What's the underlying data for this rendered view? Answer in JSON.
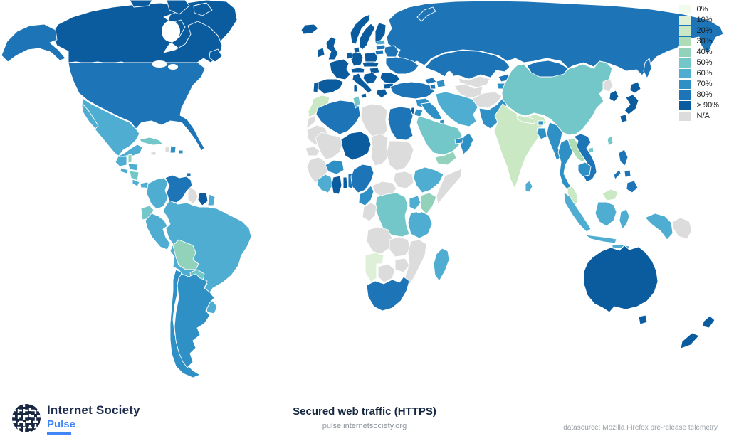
{
  "map": {
    "palette": {
      "0%": "#f3faee",
      "10%": "#def1d8",
      "20%": "#c9e8c3",
      "30%": "#aedcb6",
      "40%": "#92d2bb",
      "50%": "#74c7c8",
      "60%": "#4fadd1",
      "70%": "#2f90c5",
      "80%": "#1d74b6",
      "> 90%": "#0b5c9f",
      "N/A": "#dcdcdc"
    },
    "regions": {
      "canada": {
        "label": "Canada",
        "value": "> 90%"
      },
      "greenland": {
        "label": "Greenland",
        "value": "> 90%"
      },
      "united-states": {
        "label": "United States",
        "value": "80%"
      },
      "mexico": {
        "label": "Mexico",
        "value": "60%"
      },
      "guatemala": {
        "label": "Guatemala",
        "value": "60%"
      },
      "belize": {
        "label": "Belize",
        "value": "40%"
      },
      "honduras": {
        "label": "Honduras",
        "value": "60%"
      },
      "el-salvador": {
        "label": "El Salvador",
        "value": "60%"
      },
      "nicaragua": {
        "label": "Nicaragua",
        "value": "50%"
      },
      "costa-rica": {
        "label": "Costa Rica",
        "value": "60%"
      },
      "panama": {
        "label": "Panama",
        "value": "60%"
      },
      "cuba": {
        "label": "Cuba",
        "value": "50%"
      },
      "jamaica": {
        "label": "Jamaica",
        "value": "N/A"
      },
      "haiti": {
        "label": "Haiti",
        "value": "N/A"
      },
      "dominican-republic": {
        "label": "Dominican Republic",
        "value": "70%"
      },
      "puerto-rico": {
        "label": "Puerto Rico",
        "value": "70%"
      },
      "trinidad-tobago": {
        "label": "Trinidad and Tobago",
        "value": "80%"
      },
      "colombia": {
        "label": "Colombia",
        "value": "60%"
      },
      "venezuela": {
        "label": "Venezuela",
        "value": "80%"
      },
      "guyana": {
        "label": "Guyana",
        "value": "N/A"
      },
      "suriname": {
        "label": "Suriname",
        "value": "> 90%"
      },
      "french-guiana": {
        "label": "French Guiana",
        "value": "60%"
      },
      "ecuador": {
        "label": "Ecuador",
        "value": "50%"
      },
      "peru": {
        "label": "Peru",
        "value": "60%"
      },
      "brazil": {
        "label": "Brazil",
        "value": "60%"
      },
      "bolivia": {
        "label": "Bolivia",
        "value": "40%"
      },
      "paraguay": {
        "label": "Paraguay",
        "value": "50%"
      },
      "uruguay": {
        "label": "Uruguay",
        "value": "60%"
      },
      "chile": {
        "label": "Chile",
        "value": "70%"
      },
      "argentina": {
        "label": "Argentina",
        "value": "70%"
      },
      "iceland": {
        "label": "Iceland",
        "value": "> 90%"
      },
      "united-kingdom": {
        "label": "United Kingdom",
        "value": "> 90%"
      },
      "ireland": {
        "label": "Ireland",
        "value": "> 90%"
      },
      "norway": {
        "label": "Norway",
        "value": "> 90%"
      },
      "sweden": {
        "label": "Sweden",
        "value": "> 90%"
      },
      "finland": {
        "label": "Finland",
        "value": "> 90%"
      },
      "denmark": {
        "label": "Denmark",
        "value": "> 90%"
      },
      "estonia": {
        "label": "Estonia",
        "value": "60%"
      },
      "latvia": {
        "label": "Latvia",
        "value": "80%"
      },
      "lithuania": {
        "label": "Lithuania",
        "value": "80%"
      },
      "germany": {
        "label": "Germany",
        "value": "> 90%"
      },
      "benelux": {
        "label": "Netherlands / Belgium",
        "value": "> 90%"
      },
      "france": {
        "label": "France",
        "value": "> 90%"
      },
      "spain": {
        "label": "Spain",
        "value": "> 90%"
      },
      "portugal": {
        "label": "Portugal",
        "value": "> 90%"
      },
      "italy": {
        "label": "Italy",
        "value": "> 90%"
      },
      "switzerland-austria": {
        "label": "Switzerland / Austria",
        "value": "> 90%"
      },
      "czechia-slovakia": {
        "label": "Czechia / Slovakia",
        "value": "> 90%"
      },
      "poland": {
        "label": "Poland",
        "value": "> 90%"
      },
      "hungary": {
        "label": "Hungary",
        "value": "> 90%"
      },
      "balkans": {
        "label": "Western Balkans",
        "value": "> 90%"
      },
      "romania": {
        "label": "Romania",
        "value": "> 90%"
      },
      "bulgaria": {
        "label": "Bulgaria",
        "value": "> 90%"
      },
      "greece": {
        "label": "Greece",
        "value": "> 90%"
      },
      "belarus": {
        "label": "Belarus",
        "value": "80%"
      },
      "ukraine": {
        "label": "Ukraine",
        "value": "80%"
      },
      "russia": {
        "label": "Russia",
        "value": "80%"
      },
      "kazakhstan": {
        "label": "Kazakhstan",
        "value": "80%"
      },
      "kyrgyzstan": {
        "label": "Kyrgyzstan",
        "value": "80%"
      },
      "tajikistan": {
        "label": "Tajikistan",
        "value": "70%"
      },
      "uzbekistan": {
        "label": "Uzbekistan",
        "value": "N/A"
      },
      "turkmenistan": {
        "label": "Turkmenistan",
        "value": "N/A"
      },
      "afghanistan": {
        "label": "Afghanistan",
        "value": "N/A"
      },
      "pakistan": {
        "label": "Pakistan",
        "value": "70%"
      },
      "india": {
        "label": "India",
        "value": "20%"
      },
      "nepal": {
        "label": "Nepal",
        "value": "20%"
      },
      "bhutan": {
        "label": "Bhutan",
        "value": "70%"
      },
      "bangladesh": {
        "label": "Bangladesh",
        "value": "70%"
      },
      "sri-lanka": {
        "label": "Sri Lanka",
        "value": "60%"
      },
      "myanmar": {
        "label": "Myanmar",
        "value": "70%"
      },
      "thailand": {
        "label": "Thailand",
        "value": "70%"
      },
      "laos": {
        "label": "Laos",
        "value": "30%"
      },
      "vietnam": {
        "label": "Vietnam",
        "value": "80%"
      },
      "cambodia": {
        "label": "Cambodia",
        "value": "70%"
      },
      "malaysia": {
        "label": "Malaysia",
        "value": "20%"
      },
      "indonesia": {
        "label": "Indonesia",
        "value": "60%"
      },
      "philippines": {
        "label": "Philippines",
        "value": "80%"
      },
      "papua-new-guinea": {
        "label": "Papua New Guinea",
        "value": "N/A"
      },
      "china": {
        "label": "China",
        "value": "50%"
      },
      "mongolia": {
        "label": "Mongolia",
        "value": "80%"
      },
      "taiwan": {
        "label": "Taiwan",
        "value": "50%"
      },
      "north-korea": {
        "label": "North Korea",
        "value": "N/A"
      },
      "south-korea": {
        "label": "South Korea",
        "value": "> 90%"
      },
      "japan": {
        "label": "Japan",
        "value": "> 90%"
      },
      "turkey": {
        "label": "Turkey",
        "value": "80%"
      },
      "georgia": {
        "label": "Georgia",
        "value": "80%"
      },
      "armenia": {
        "label": "Armenia",
        "value": "80%"
      },
      "azerbaijan": {
        "label": "Azerbaijan",
        "value": "70%"
      },
      "syria": {
        "label": "Syria",
        "value": "70%"
      },
      "iraq": {
        "label": "Iraq",
        "value": "70%"
      },
      "israel": {
        "label": "Israel",
        "value": "> 90%"
      },
      "jordan": {
        "label": "Jordan",
        "value": "70%"
      },
      "kuwait": {
        "label": "Kuwait",
        "value": "70%"
      },
      "saudi-arabia": {
        "label": "Saudi Arabia",
        "value": "50%"
      },
      "yemen": {
        "label": "Yemen",
        "value": "40%"
      },
      "oman": {
        "label": "Oman",
        "value": "70%"
      },
      "uae": {
        "label": "United Arab Emirates",
        "value": "70%"
      },
      "iran": {
        "label": "Iran",
        "value": "60%"
      },
      "morocco": {
        "label": "Morocco",
        "value": "20%"
      },
      "western-sahara": {
        "label": "Western Sahara",
        "value": "N/A"
      },
      "algeria": {
        "label": "Algeria",
        "value": "80%"
      },
      "tunisia": {
        "label": "Tunisia",
        "value": "50%"
      },
      "libya": {
        "label": "Libya",
        "value": "N/A"
      },
      "egypt": {
        "label": "Egypt",
        "value": "80%"
      },
      "mauritania": {
        "label": "Mauritania",
        "value": "N/A"
      },
      "mali": {
        "label": "Mali",
        "value": "N/A"
      },
      "senegal": {
        "label": "Senegal",
        "value": "N/A"
      },
      "guinea-region": {
        "label": "Guinea / Sierra Leone / Liberia",
        "value": "N/A"
      },
      "cote-divoire": {
        "label": "Côte d'Ivoire",
        "value": "60%"
      },
      "ghana": {
        "label": "Ghana",
        "value": "> 90%"
      },
      "togo": {
        "label": "Togo",
        "value": "> 90%"
      },
      "benin": {
        "label": "Benin",
        "value": "80%"
      },
      "burkina-faso": {
        "label": "Burkina Faso",
        "value": "70%"
      },
      "niger": {
        "label": "Niger",
        "value": "> 90%"
      },
      "chad": {
        "label": "Chad",
        "value": "N/A"
      },
      "nigeria": {
        "label": "Nigeria",
        "value": "80%"
      },
      "cameroon": {
        "label": "Cameroon",
        "value": "70%"
      },
      "central-african-republic": {
        "label": "Central African Republic",
        "value": "N/A"
      },
      "sudan": {
        "label": "Sudan",
        "value": "N/A"
      },
      "south-sudan": {
        "label": "South Sudan",
        "value": "N/A"
      },
      "ethiopia": {
        "label": "Ethiopia",
        "value": "60%"
      },
      "somalia": {
        "label": "Somalia",
        "value": "N/A"
      },
      "kenya": {
        "label": "Kenya",
        "value": "40%"
      },
      "uganda": {
        "label": "Uganda",
        "value": "60%"
      },
      "dr-congo": {
        "label": "DR Congo",
        "value": "50%"
      },
      "congo-gabon": {
        "label": "Congo / Gabon",
        "value": "N/A"
      },
      "tanzania": {
        "label": "Tanzania",
        "value": "60%"
      },
      "angola": {
        "label": "Angola",
        "value": "N/A"
      },
      "zambia": {
        "label": "Zambia",
        "value": "N/A"
      },
      "mozambique": {
        "label": "Mozambique / Malawi",
        "value": "N/A"
      },
      "zimbabwe": {
        "label": "Zimbabwe",
        "value": "N/A"
      },
      "namibia": {
        "label": "Namibia",
        "value": "10%"
      },
      "botswana": {
        "label": "Botswana",
        "value": "N/A"
      },
      "south-africa": {
        "label": "South Africa",
        "value": "80%"
      },
      "madagascar": {
        "label": "Madagascar",
        "value": "60%"
      },
      "australia": {
        "label": "Australia",
        "value": "> 90%"
      },
      "new-zealand": {
        "label": "New Zealand",
        "value": "> 90%"
      }
    }
  },
  "legend": {
    "items": [
      {
        "label": "0%",
        "value": "0%"
      },
      {
        "label": "10%",
        "value": "10%"
      },
      {
        "label": "20%",
        "value": "20%"
      },
      {
        "label": "30%",
        "value": "30%"
      },
      {
        "label": "40%",
        "value": "40%"
      },
      {
        "label": "50%",
        "value": "50%"
      },
      {
        "label": "60%",
        "value": "60%"
      },
      {
        "label": "70%",
        "value": "70%"
      },
      {
        "label": "80%",
        "value": "80%"
      },
      {
        "label": "> 90%",
        "value": "> 90%"
      },
      {
        "label": "N/A",
        "value": "N/A"
      }
    ]
  },
  "footer": {
    "brand_line1": "Internet Society",
    "brand_line2": "Pulse",
    "title": "Secured web traffic (HTTPS)",
    "subtitle": "pulse.internetsociety.org",
    "datasource": "datasource: Mozilla Firefox pre-release telemetry"
  }
}
